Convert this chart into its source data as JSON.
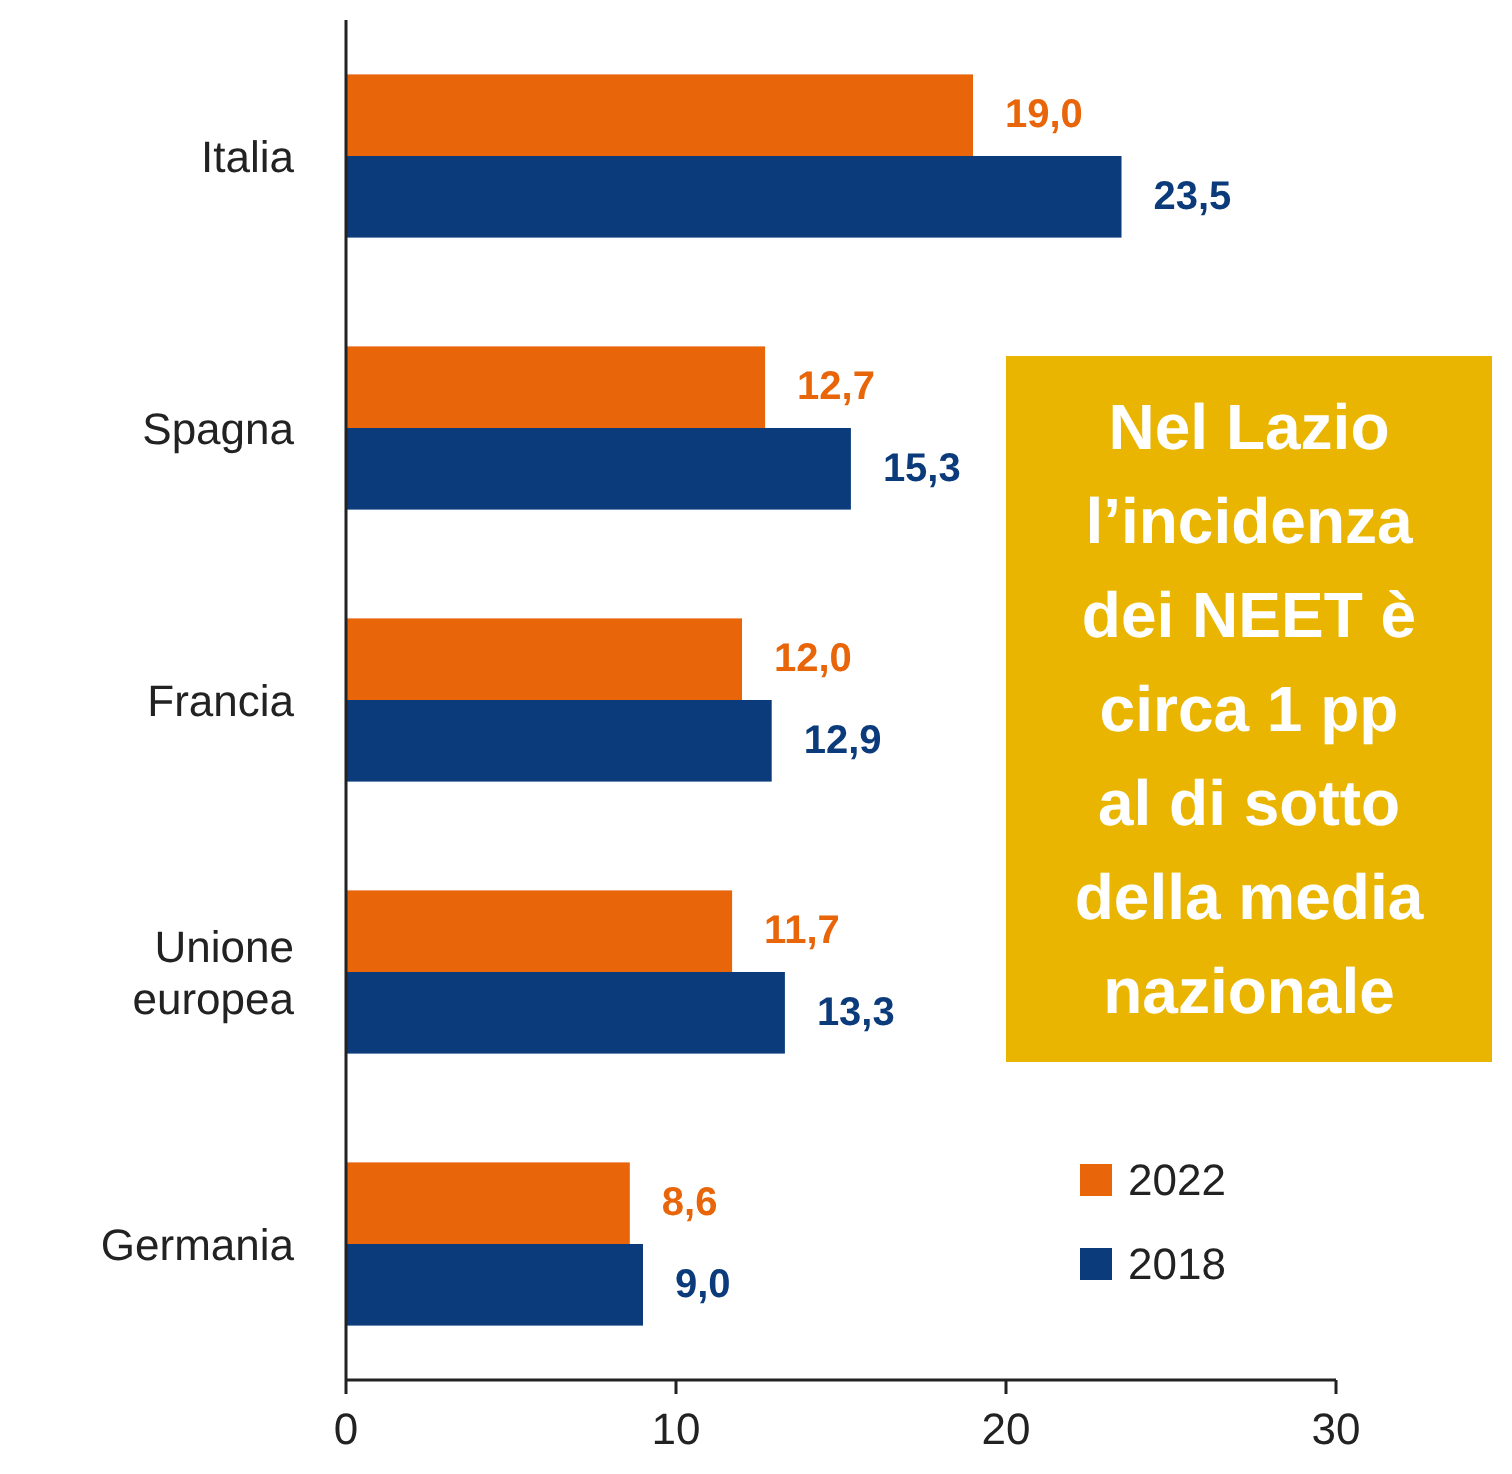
{
  "chart_data": {
    "type": "bar",
    "orientation": "horizontal",
    "categories": [
      "Italia",
      "Spagna",
      "Francia",
      "Unione europea",
      "Germania"
    ],
    "series": [
      {
        "name": "2022",
        "color": "#e8650a",
        "values": [
          19.0,
          12.7,
          12.0,
          11.7,
          8.6
        ],
        "value_labels": [
          "19,0",
          "12,7",
          "12,0",
          "11,7",
          "8,6"
        ]
      },
      {
        "name": "2018",
        "color": "#0b3b7a",
        "values": [
          23.5,
          15.3,
          12.9,
          13.3,
          9.0
        ],
        "value_labels": [
          "23,5",
          "15,3",
          "12,9",
          "13,3",
          "9,0"
        ]
      }
    ],
    "xlim": [
      0,
      30
    ],
    "xticks": [
      0,
      10,
      20,
      30
    ],
    "grid": false,
    "legend": "bottom right",
    "annotations": [
      "Nel Lazio l’incidenza dei NEET è circa 1 pp al di sotto della media nazionale"
    ]
  }
}
